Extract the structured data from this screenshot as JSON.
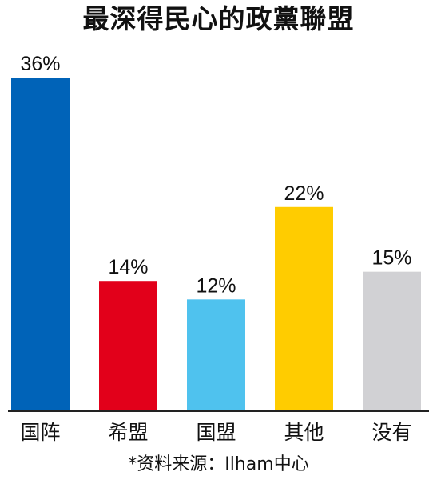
{
  "chart_data": {
    "type": "bar",
    "title": "最深得民心的政黨聯盟",
    "categories": [
      "国阵",
      "希盟",
      "国盟",
      "其他",
      "没有"
    ],
    "values": [
      36,
      14,
      12,
      22,
      15
    ],
    "value_labels": [
      "36%",
      "14%",
      "12%",
      "22%",
      "15%"
    ],
    "colors": [
      "#0063B8",
      "#E2001A",
      "#4FC2EE",
      "#FFCC00",
      "#D1D1D4"
    ],
    "xlabel": "",
    "ylabel": "",
    "ylim": [
      0,
      36
    ],
    "grid": false,
    "source": "*资料来源：Ilham中心"
  }
}
